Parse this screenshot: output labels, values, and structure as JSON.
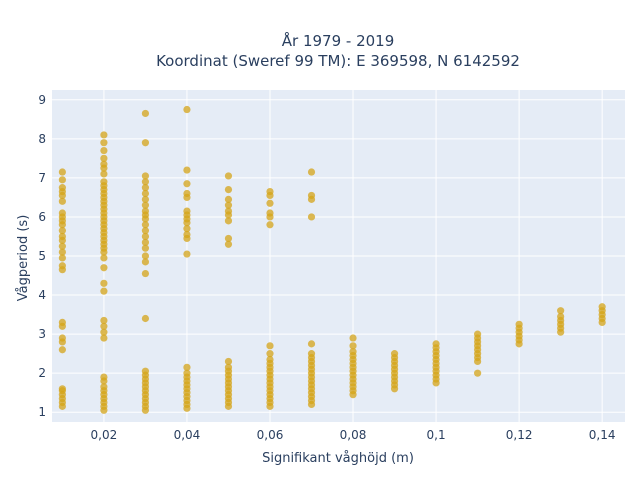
{
  "chart_data": {
    "type": "scatter",
    "title_lines": [
      "År 1979 - 2019",
      "Koordinat (Sweref 99 TM): E 369598, N 6142592"
    ],
    "xlabel": "Signifikant våghöjd (m)",
    "ylabel": "Vågperiod (s)",
    "xlim": [
      0.0075,
      0.1455
    ],
    "ylim": [
      0.75,
      9.25
    ],
    "x_ticks": [
      0.02,
      0.04,
      0.06,
      0.08,
      0.1,
      0.12,
      0.14
    ],
    "x_tick_labels": [
      "0,02",
      "0,04",
      "0,06",
      "0,08",
      "0,1",
      "0,12",
      "0,14"
    ],
    "y_ticks": [
      1,
      2,
      3,
      4,
      5,
      6,
      7,
      8,
      9
    ],
    "y_tick_labels": [
      "1",
      "2",
      "3",
      "4",
      "5",
      "6",
      "7",
      "8",
      "9"
    ],
    "grid": true,
    "colors": {
      "marker": "#d4a418",
      "plot_bg": "#e5ecf6",
      "grid": "#ffffff",
      "text": "#2a3f5f"
    },
    "points": [
      {
        "x": 0.01,
        "y": 1.15
      },
      {
        "x": 0.01,
        "y": 1.25
      },
      {
        "x": 0.01,
        "y": 1.35
      },
      {
        "x": 0.01,
        "y": 1.45
      },
      {
        "x": 0.01,
        "y": 1.55
      },
      {
        "x": 0.01,
        "y": 1.6
      },
      {
        "x": 0.01,
        "y": 2.6
      },
      {
        "x": 0.01,
        "y": 2.8
      },
      {
        "x": 0.01,
        "y": 2.9
      },
      {
        "x": 0.01,
        "y": 3.2
      },
      {
        "x": 0.01,
        "y": 3.3
      },
      {
        "x": 0.01,
        "y": 4.65
      },
      {
        "x": 0.01,
        "y": 4.75
      },
      {
        "x": 0.01,
        "y": 4.95
      },
      {
        "x": 0.01,
        "y": 5.1
      },
      {
        "x": 0.01,
        "y": 5.25
      },
      {
        "x": 0.01,
        "y": 5.4
      },
      {
        "x": 0.01,
        "y": 5.5
      },
      {
        "x": 0.01,
        "y": 5.65
      },
      {
        "x": 0.01,
        "y": 5.8
      },
      {
        "x": 0.01,
        "y": 5.9
      },
      {
        "x": 0.01,
        "y": 6.0
      },
      {
        "x": 0.01,
        "y": 6.1
      },
      {
        "x": 0.01,
        "y": 6.4
      },
      {
        "x": 0.01,
        "y": 6.55
      },
      {
        "x": 0.01,
        "y": 6.65
      },
      {
        "x": 0.01,
        "y": 6.75
      },
      {
        "x": 0.01,
        "y": 6.95
      },
      {
        "x": 0.01,
        "y": 7.15
      },
      {
        "x": 0.02,
        "y": 1.05
      },
      {
        "x": 0.02,
        "y": 1.15
      },
      {
        "x": 0.02,
        "y": 1.25
      },
      {
        "x": 0.02,
        "y": 1.35
      },
      {
        "x": 0.02,
        "y": 1.45
      },
      {
        "x": 0.02,
        "y": 1.55
      },
      {
        "x": 0.02,
        "y": 1.65
      },
      {
        "x": 0.02,
        "y": 1.8
      },
      {
        "x": 0.02,
        "y": 1.9
      },
      {
        "x": 0.02,
        "y": 2.9
      },
      {
        "x": 0.02,
        "y": 3.05
      },
      {
        "x": 0.02,
        "y": 3.2
      },
      {
        "x": 0.02,
        "y": 3.35
      },
      {
        "x": 0.02,
        "y": 4.1
      },
      {
        "x": 0.02,
        "y": 4.3
      },
      {
        "x": 0.02,
        "y": 4.7
      },
      {
        "x": 0.02,
        "y": 4.95
      },
      {
        "x": 0.02,
        "y": 5.1
      },
      {
        "x": 0.02,
        "y": 5.2
      },
      {
        "x": 0.02,
        "y": 5.3
      },
      {
        "x": 0.02,
        "y": 5.4
      },
      {
        "x": 0.02,
        "y": 5.5
      },
      {
        "x": 0.02,
        "y": 5.6
      },
      {
        "x": 0.02,
        "y": 5.7
      },
      {
        "x": 0.02,
        "y": 5.8
      },
      {
        "x": 0.02,
        "y": 5.9
      },
      {
        "x": 0.02,
        "y": 6.0
      },
      {
        "x": 0.02,
        "y": 6.1
      },
      {
        "x": 0.02,
        "y": 6.2
      },
      {
        "x": 0.02,
        "y": 6.3
      },
      {
        "x": 0.02,
        "y": 6.4
      },
      {
        "x": 0.02,
        "y": 6.5
      },
      {
        "x": 0.02,
        "y": 6.6
      },
      {
        "x": 0.02,
        "y": 6.7
      },
      {
        "x": 0.02,
        "y": 6.8
      },
      {
        "x": 0.02,
        "y": 6.9
      },
      {
        "x": 0.02,
        "y": 7.1
      },
      {
        "x": 0.02,
        "y": 7.25
      },
      {
        "x": 0.02,
        "y": 7.35
      },
      {
        "x": 0.02,
        "y": 7.5
      },
      {
        "x": 0.02,
        "y": 7.7
      },
      {
        "x": 0.02,
        "y": 7.9
      },
      {
        "x": 0.02,
        "y": 8.1
      },
      {
        "x": 0.03,
        "y": 1.05
      },
      {
        "x": 0.03,
        "y": 1.15
      },
      {
        "x": 0.03,
        "y": 1.25
      },
      {
        "x": 0.03,
        "y": 1.35
      },
      {
        "x": 0.03,
        "y": 1.45
      },
      {
        "x": 0.03,
        "y": 1.55
      },
      {
        "x": 0.03,
        "y": 1.65
      },
      {
        "x": 0.03,
        "y": 1.75
      },
      {
        "x": 0.03,
        "y": 1.85
      },
      {
        "x": 0.03,
        "y": 1.95
      },
      {
        "x": 0.03,
        "y": 2.05
      },
      {
        "x": 0.03,
        "y": 3.4
      },
      {
        "x": 0.03,
        "y": 4.55
      },
      {
        "x": 0.03,
        "y": 4.85
      },
      {
        "x": 0.03,
        "y": 5.0
      },
      {
        "x": 0.03,
        "y": 5.2
      },
      {
        "x": 0.03,
        "y": 5.35
      },
      {
        "x": 0.03,
        "y": 5.5
      },
      {
        "x": 0.03,
        "y": 5.65
      },
      {
        "x": 0.03,
        "y": 5.8
      },
      {
        "x": 0.03,
        "y": 5.95
      },
      {
        "x": 0.03,
        "y": 6.05
      },
      {
        "x": 0.03,
        "y": 6.15
      },
      {
        "x": 0.03,
        "y": 6.3
      },
      {
        "x": 0.03,
        "y": 6.45
      },
      {
        "x": 0.03,
        "y": 6.6
      },
      {
        "x": 0.03,
        "y": 6.75
      },
      {
        "x": 0.03,
        "y": 6.9
      },
      {
        "x": 0.03,
        "y": 7.05
      },
      {
        "x": 0.03,
        "y": 7.9
      },
      {
        "x": 0.03,
        "y": 8.65
      },
      {
        "x": 0.04,
        "y": 1.1
      },
      {
        "x": 0.04,
        "y": 1.2
      },
      {
        "x": 0.04,
        "y": 1.3
      },
      {
        "x": 0.04,
        "y": 1.4
      },
      {
        "x": 0.04,
        "y": 1.5
      },
      {
        "x": 0.04,
        "y": 1.6
      },
      {
        "x": 0.04,
        "y": 1.7
      },
      {
        "x": 0.04,
        "y": 1.8
      },
      {
        "x": 0.04,
        "y": 1.9
      },
      {
        "x": 0.04,
        "y": 2.0
      },
      {
        "x": 0.04,
        "y": 2.15
      },
      {
        "x": 0.04,
        "y": 5.05
      },
      {
        "x": 0.04,
        "y": 5.45
      },
      {
        "x": 0.04,
        "y": 5.55
      },
      {
        "x": 0.04,
        "y": 5.7
      },
      {
        "x": 0.04,
        "y": 5.85
      },
      {
        "x": 0.04,
        "y": 5.95
      },
      {
        "x": 0.04,
        "y": 6.05
      },
      {
        "x": 0.04,
        "y": 6.15
      },
      {
        "x": 0.04,
        "y": 6.5
      },
      {
        "x": 0.04,
        "y": 6.6
      },
      {
        "x": 0.04,
        "y": 6.85
      },
      {
        "x": 0.04,
        "y": 7.2
      },
      {
        "x": 0.04,
        "y": 8.75
      },
      {
        "x": 0.05,
        "y": 1.15
      },
      {
        "x": 0.05,
        "y": 1.25
      },
      {
        "x": 0.05,
        "y": 1.35
      },
      {
        "x": 0.05,
        "y": 1.45
      },
      {
        "x": 0.05,
        "y": 1.55
      },
      {
        "x": 0.05,
        "y": 1.65
      },
      {
        "x": 0.05,
        "y": 1.75
      },
      {
        "x": 0.05,
        "y": 1.85
      },
      {
        "x": 0.05,
        "y": 1.95
      },
      {
        "x": 0.05,
        "y": 2.05
      },
      {
        "x": 0.05,
        "y": 2.15
      },
      {
        "x": 0.05,
        "y": 2.3
      },
      {
        "x": 0.05,
        "y": 5.3
      },
      {
        "x": 0.05,
        "y": 5.45
      },
      {
        "x": 0.05,
        "y": 5.9
      },
      {
        "x": 0.05,
        "y": 6.05
      },
      {
        "x": 0.05,
        "y": 6.15
      },
      {
        "x": 0.05,
        "y": 6.3
      },
      {
        "x": 0.05,
        "y": 6.45
      },
      {
        "x": 0.05,
        "y": 6.7
      },
      {
        "x": 0.05,
        "y": 7.05
      },
      {
        "x": 0.06,
        "y": 1.15
      },
      {
        "x": 0.06,
        "y": 1.25
      },
      {
        "x": 0.06,
        "y": 1.35
      },
      {
        "x": 0.06,
        "y": 1.45
      },
      {
        "x": 0.06,
        "y": 1.55
      },
      {
        "x": 0.06,
        "y": 1.65
      },
      {
        "x": 0.06,
        "y": 1.75
      },
      {
        "x": 0.06,
        "y": 1.85
      },
      {
        "x": 0.06,
        "y": 1.95
      },
      {
        "x": 0.06,
        "y": 2.05
      },
      {
        "x": 0.06,
        "y": 2.15
      },
      {
        "x": 0.06,
        "y": 2.25
      },
      {
        "x": 0.06,
        "y": 2.35
      },
      {
        "x": 0.06,
        "y": 2.5
      },
      {
        "x": 0.06,
        "y": 2.7
      },
      {
        "x": 0.06,
        "y": 5.8
      },
      {
        "x": 0.06,
        "y": 6.0
      },
      {
        "x": 0.06,
        "y": 6.1
      },
      {
        "x": 0.06,
        "y": 6.35
      },
      {
        "x": 0.06,
        "y": 6.55
      },
      {
        "x": 0.06,
        "y": 6.65
      },
      {
        "x": 0.07,
        "y": 1.2
      },
      {
        "x": 0.07,
        "y": 1.3
      },
      {
        "x": 0.07,
        "y": 1.4
      },
      {
        "x": 0.07,
        "y": 1.5
      },
      {
        "x": 0.07,
        "y": 1.6
      },
      {
        "x": 0.07,
        "y": 1.7
      },
      {
        "x": 0.07,
        "y": 1.8
      },
      {
        "x": 0.07,
        "y": 1.9
      },
      {
        "x": 0.07,
        "y": 2.0
      },
      {
        "x": 0.07,
        "y": 2.1
      },
      {
        "x": 0.07,
        "y": 2.2
      },
      {
        "x": 0.07,
        "y": 2.3
      },
      {
        "x": 0.07,
        "y": 2.4
      },
      {
        "x": 0.07,
        "y": 2.5
      },
      {
        "x": 0.07,
        "y": 2.75
      },
      {
        "x": 0.07,
        "y": 6.0
      },
      {
        "x": 0.07,
        "y": 6.45
      },
      {
        "x": 0.07,
        "y": 6.55
      },
      {
        "x": 0.07,
        "y": 7.15
      },
      {
        "x": 0.08,
        "y": 1.45
      },
      {
        "x": 0.08,
        "y": 1.55
      },
      {
        "x": 0.08,
        "y": 1.65
      },
      {
        "x": 0.08,
        "y": 1.75
      },
      {
        "x": 0.08,
        "y": 1.85
      },
      {
        "x": 0.08,
        "y": 1.95
      },
      {
        "x": 0.08,
        "y": 2.05
      },
      {
        "x": 0.08,
        "y": 2.15
      },
      {
        "x": 0.08,
        "y": 2.25
      },
      {
        "x": 0.08,
        "y": 2.35
      },
      {
        "x": 0.08,
        "y": 2.45
      },
      {
        "x": 0.08,
        "y": 2.55
      },
      {
        "x": 0.08,
        "y": 2.7
      },
      {
        "x": 0.08,
        "y": 2.9
      },
      {
        "x": 0.09,
        "y": 1.6
      },
      {
        "x": 0.09,
        "y": 1.7
      },
      {
        "x": 0.09,
        "y": 1.8
      },
      {
        "x": 0.09,
        "y": 1.9
      },
      {
        "x": 0.09,
        "y": 2.0
      },
      {
        "x": 0.09,
        "y": 2.1
      },
      {
        "x": 0.09,
        "y": 2.2
      },
      {
        "x": 0.09,
        "y": 2.3
      },
      {
        "x": 0.09,
        "y": 2.4
      },
      {
        "x": 0.09,
        "y": 2.5
      },
      {
        "x": 0.1,
        "y": 1.75
      },
      {
        "x": 0.1,
        "y": 1.85
      },
      {
        "x": 0.1,
        "y": 1.95
      },
      {
        "x": 0.1,
        "y": 2.05
      },
      {
        "x": 0.1,
        "y": 2.15
      },
      {
        "x": 0.1,
        "y": 2.25
      },
      {
        "x": 0.1,
        "y": 2.35
      },
      {
        "x": 0.1,
        "y": 2.45
      },
      {
        "x": 0.1,
        "y": 2.55
      },
      {
        "x": 0.1,
        "y": 2.65
      },
      {
        "x": 0.1,
        "y": 2.75
      },
      {
        "x": 0.11,
        "y": 2.0
      },
      {
        "x": 0.11,
        "y": 2.3
      },
      {
        "x": 0.11,
        "y": 2.4
      },
      {
        "x": 0.11,
        "y": 2.5
      },
      {
        "x": 0.11,
        "y": 2.6
      },
      {
        "x": 0.11,
        "y": 2.7
      },
      {
        "x": 0.11,
        "y": 2.8
      },
      {
        "x": 0.11,
        "y": 2.9
      },
      {
        "x": 0.11,
        "y": 3.0
      },
      {
        "x": 0.12,
        "y": 2.75
      },
      {
        "x": 0.12,
        "y": 2.85
      },
      {
        "x": 0.12,
        "y": 2.95
      },
      {
        "x": 0.12,
        "y": 3.05
      },
      {
        "x": 0.12,
        "y": 3.15
      },
      {
        "x": 0.12,
        "y": 3.25
      },
      {
        "x": 0.13,
        "y": 3.05
      },
      {
        "x": 0.13,
        "y": 3.15
      },
      {
        "x": 0.13,
        "y": 3.25
      },
      {
        "x": 0.13,
        "y": 3.35
      },
      {
        "x": 0.13,
        "y": 3.45
      },
      {
        "x": 0.13,
        "y": 3.6
      },
      {
        "x": 0.14,
        "y": 3.3
      },
      {
        "x": 0.14,
        "y": 3.4
      },
      {
        "x": 0.14,
        "y": 3.5
      },
      {
        "x": 0.14,
        "y": 3.6
      },
      {
        "x": 0.14,
        "y": 3.7
      }
    ]
  }
}
